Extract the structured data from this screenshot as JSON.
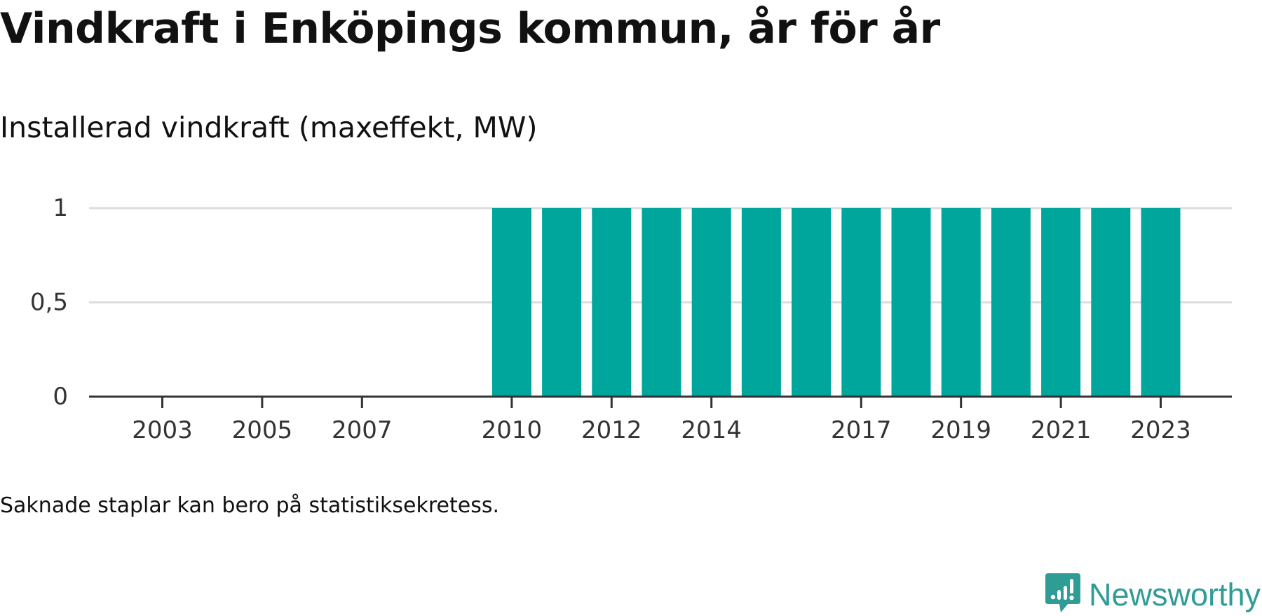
{
  "header": {
    "title": "Vindkraft i Enköpings kommun, år för år",
    "subtitle": "Installerad vindkraft (maxeffekt, MW)"
  },
  "footer": {
    "note": "Saknade staplar kan bero på statistiksekretess.",
    "brand_name": "Newsworthy",
    "brand_icon": "newsworthy-logo-icon"
  },
  "colors": {
    "bar": "#00a59b",
    "brand": "#2f9c96",
    "gridline": "#dddddd",
    "axis": "#333333",
    "text": "#111111"
  },
  "chart_data": {
    "type": "bar",
    "x": [
      2003,
      2004,
      2005,
      2006,
      2007,
      2008,
      2009,
      2010,
      2011,
      2012,
      2013,
      2014,
      2015,
      2016,
      2017,
      2018,
      2019,
      2020,
      2021,
      2022,
      2023
    ],
    "values": [
      null,
      null,
      null,
      null,
      null,
      null,
      null,
      1,
      1,
      1,
      1,
      1,
      1,
      1,
      1,
      1,
      1,
      1,
      1,
      1,
      1
    ],
    "x_tick_labels": [
      "2003",
      "2005",
      "2007",
      "2010",
      "2012",
      "2014",
      "2017",
      "2019",
      "2021",
      "2023"
    ],
    "y_ticks": [
      0,
      0.5,
      1
    ],
    "y_tick_labels": [
      "0",
      "0,5",
      "1"
    ],
    "ylim": [
      0,
      1
    ],
    "xlabel": "",
    "ylabel": "",
    "grid": true,
    "legend": "none"
  }
}
